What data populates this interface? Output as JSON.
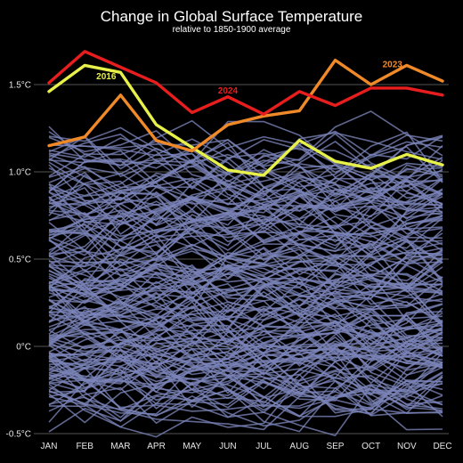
{
  "chart_data": {
    "type": "line",
    "title": "Change in Global Surface Temperature",
    "subtitle": "relative to 1850-1900 average",
    "categories": [
      "JAN",
      "FEB",
      "MAR",
      "APR",
      "MAY",
      "JUN",
      "JUL",
      "AUG",
      "SEP",
      "OCT",
      "NOV",
      "DEC"
    ],
    "ylim": [
      -0.5,
      1.7
    ],
    "yticks": [
      {
        "value": 1.5,
        "label": "1.5°C"
      },
      {
        "value": 1.0,
        "label": "1.0°C"
      },
      {
        "value": 0.5,
        "label": "0.5°C"
      },
      {
        "value": 0.0,
        "label": "0°C"
      },
      {
        "value": -0.5,
        "label": "-0.5°C"
      }
    ],
    "grid": true,
    "colors": {
      "background": "#000000",
      "historical": "#7b84b8",
      "y2016": "#e8f04a",
      "y2023": "#f08a28",
      "y2024": "#e81e1e",
      "gridline": "#555555"
    },
    "highlight_series": [
      {
        "name": "2016",
        "color": "#e8f04a",
        "values": [
          1.46,
          1.61,
          1.57,
          1.27,
          1.14,
          1.01,
          0.98,
          1.18,
          1.06,
          1.02,
          1.1,
          1.04
        ],
        "label_at": [
          1.6,
          1.53
        ]
      },
      {
        "name": "2023",
        "color": "#f08a28",
        "values": [
          1.15,
          1.2,
          1.44,
          1.18,
          1.12,
          1.27,
          1.32,
          1.35,
          1.64,
          1.5,
          1.61,
          1.52
        ],
        "label_at": [
          9.6,
          1.6
        ]
      },
      {
        "name": "2024",
        "color": "#e81e1e",
        "values": [
          1.51,
          1.69,
          1.6,
          1.51,
          1.34,
          1.43,
          1.33,
          1.46,
          1.38,
          1.48,
          1.48,
          1.44
        ],
        "label_at": [
          5.0,
          1.45
        ]
      }
    ],
    "historical_series_count": 174
  }
}
